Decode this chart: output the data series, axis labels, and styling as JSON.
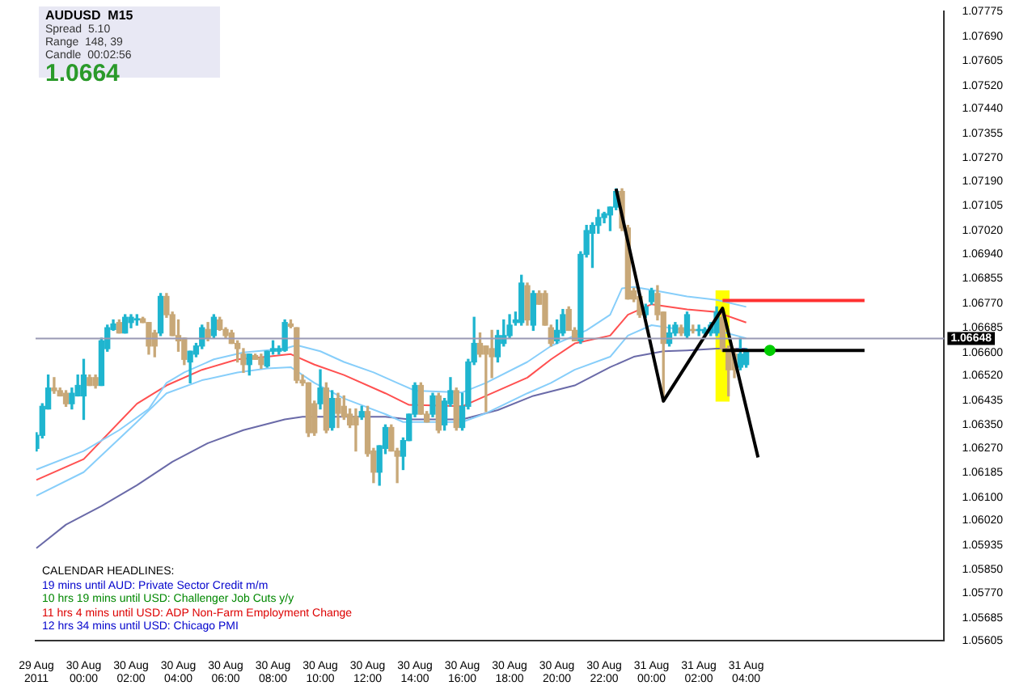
{
  "chart_data": {
    "type": "candlestick",
    "title": "AUDUSD  M15",
    "annotations": [
      "Spread  5.10",
      "Range  148, 39",
      "Candle  00:02:56",
      "1.0664",
      "CALENDAR HEADLINES:",
      "19 mins until AUD: Private Sector Credit m/m",
      "10 hrs 19 mins until USD: Challenger Job Cuts y/y",
      "11 hrs 4 mins until USD: ADP Non-Farm Employment Change",
      "12 hrs 34 mins until USD: Chicago PMI"
    ],
    "x": [
      "2011-08-29T22:00",
      "2011-08-29T22:15",
      "2011-08-29T22:30",
      "2011-08-29T22:45",
      "2011-08-29T23:00",
      "2011-08-29T23:15",
      "2011-08-29T23:30",
      "2011-08-29T23:45",
      "2011-08-30T00:00",
      "2011-08-30T00:15",
      "2011-08-30T00:30",
      "2011-08-30T00:45",
      "2011-08-30T01:00",
      "2011-08-30T01:15",
      "2011-08-30T01:30",
      "2011-08-30T01:45",
      "2011-08-30T02:00",
      "2011-08-30T02:15",
      "2011-08-30T02:30",
      "2011-08-30T02:45",
      "2011-08-30T03:00",
      "2011-08-30T03:15",
      "2011-08-30T03:30",
      "2011-08-30T03:45",
      "2011-08-30T04:00",
      "2011-08-30T04:15",
      "2011-08-30T04:30",
      "2011-08-30T04:45",
      "2011-08-30T05:00",
      "2011-08-30T05:15",
      "2011-08-30T05:30",
      "2011-08-30T05:45",
      "2011-08-30T06:00",
      "2011-08-30T06:15",
      "2011-08-30T06:30",
      "2011-08-30T06:45",
      "2011-08-30T07:00",
      "2011-08-30T07:15",
      "2011-08-30T07:30",
      "2011-08-30T07:45",
      "2011-08-30T08:00",
      "2011-08-30T08:15",
      "2011-08-30T08:30",
      "2011-08-30T08:45",
      "2011-08-30T09:00",
      "2011-08-30T09:15",
      "2011-08-30T09:30",
      "2011-08-30T09:45",
      "2011-08-30T10:00",
      "2011-08-30T10:15",
      "2011-08-30T10:30",
      "2011-08-30T10:45",
      "2011-08-30T11:00",
      "2011-08-30T11:15",
      "2011-08-30T11:30",
      "2011-08-30T11:45",
      "2011-08-30T12:00",
      "2011-08-30T12:15",
      "2011-08-30T12:30",
      "2011-08-30T12:45",
      "2011-08-30T13:00",
      "2011-08-30T13:15",
      "2011-08-30T13:30",
      "2011-08-30T13:45",
      "2011-08-30T14:00",
      "2011-08-30T14:15",
      "2011-08-30T14:30",
      "2011-08-30T14:45",
      "2011-08-30T15:00",
      "2011-08-30T15:15",
      "2011-08-30T15:30",
      "2011-08-30T15:45",
      "2011-08-30T16:00",
      "2011-08-30T16:15",
      "2011-08-30T16:30",
      "2011-08-30T16:45",
      "2011-08-30T17:00",
      "2011-08-30T17:15",
      "2011-08-30T17:30",
      "2011-08-30T17:45",
      "2011-08-30T18:00",
      "2011-08-30T18:15",
      "2011-08-30T18:30",
      "2011-08-30T18:45",
      "2011-08-30T19:00",
      "2011-08-30T19:15",
      "2011-08-30T19:30",
      "2011-08-30T19:45",
      "2011-08-30T20:00",
      "2011-08-30T20:15",
      "2011-08-30T20:30",
      "2011-08-30T20:45",
      "2011-08-30T21:00",
      "2011-08-30T21:15",
      "2011-08-30T21:30",
      "2011-08-30T21:45",
      "2011-08-30T22:00",
      "2011-08-30T22:15",
      "2011-08-30T22:30",
      "2011-08-30T22:45",
      "2011-08-30T23:00",
      "2011-08-30T23:15",
      "2011-08-30T23:30",
      "2011-08-30T23:45",
      "2011-08-31T00:00",
      "2011-08-31T00:15",
      "2011-08-31T00:30",
      "2011-08-31T00:45",
      "2011-08-31T01:00",
      "2011-08-31T01:15",
      "2011-08-31T01:30",
      "2011-08-31T01:45",
      "2011-08-31T02:00",
      "2011-08-31T02:15",
      "2011-08-31T02:30",
      "2011-08-31T02:45",
      "2011-08-31T03:00",
      "2011-08-31T03:15",
      "2011-08-31T03:30",
      "2011-08-31T03:45",
      "2011-08-31T04:00"
    ],
    "ohlc": [
      [
        1.06269,
        1.06323,
        1.0626,
        1.06314
      ],
      [
        1.06314,
        1.06423,
        1.06305,
        1.06414
      ],
      [
        1.06405,
        1.06522,
        1.06405,
        1.06477
      ],
      [
        1.06477,
        1.06513,
        1.06459,
        1.06468
      ],
      [
        1.06468,
        1.06477,
        1.0645,
        1.0645
      ],
      [
        1.06459,
        1.06468,
        1.06414,
        1.06423
      ],
      [
        1.06423,
        1.06477,
        1.06405,
        1.06459
      ],
      [
        1.0645,
        1.06522,
        1.0645,
        1.06486
      ],
      [
        1.0645,
        1.06576,
        1.06369,
        1.06522
      ],
      [
        1.06513,
        1.06522,
        1.06486,
        1.06486
      ],
      [
        1.06513,
        1.06522,
        1.06477,
        1.06486
      ],
      [
        1.06486,
        1.06649,
        1.06486,
        1.0664
      ],
      [
        1.06613,
        1.06694,
        1.06604,
        1.06685
      ],
      [
        1.06679,
        1.06712,
        1.06676,
        1.06698
      ],
      [
        1.06703,
        1.06712,
        1.06667,
        1.06667
      ],
      [
        1.06667,
        1.0673,
        1.06667,
        1.06721
      ],
      [
        1.06703,
        1.0673,
        1.06685,
        1.06721
      ],
      [
        1.06712,
        1.0673,
        1.06694,
        1.06716
      ],
      [
        1.06716,
        1.06721,
        1.06703,
        1.06703
      ],
      [
        1.06703,
        1.06703,
        1.06594,
        1.06622
      ],
      [
        1.06667,
        1.06676,
        1.06585,
        1.06622
      ],
      [
        1.06667,
        1.06803,
        1.06658,
        1.06793
      ],
      [
        1.06793,
        1.06803,
        1.06721,
        1.0673
      ],
      [
        1.0673,
        1.06739,
        1.06658,
        1.06658
      ],
      [
        1.06658,
        1.06712,
        1.06604,
        1.0664
      ],
      [
        1.06649,
        1.06649,
        1.06558,
        1.06576
      ],
      [
        1.06567,
        1.06604,
        1.06495,
        1.06604
      ],
      [
        1.06594,
        1.06631,
        1.06585,
        1.06622
      ],
      [
        1.06622,
        1.06694,
        1.06613,
        1.06685
      ],
      [
        1.06679,
        1.06703,
        1.0664,
        1.06649
      ],
      [
        1.06658,
        1.0673,
        1.06649,
        1.06721
      ],
      [
        1.06712,
        1.06721,
        1.06676,
        1.06679
      ],
      [
        1.06679,
        1.06685,
        1.06649,
        1.06658
      ],
      [
        1.06667,
        1.06676,
        1.06631,
        1.06631
      ],
      [
        1.06631,
        1.0664,
        1.06567,
        1.06613
      ],
      [
        1.06594,
        1.06613,
        1.06531,
        1.06558
      ],
      [
        1.06558,
        1.06594,
        1.06522,
        1.06594
      ],
      [
        1.06589,
        1.06594,
        1.06576,
        1.06576
      ],
      [
        1.06582,
        1.06594,
        1.06545,
        1.06558
      ],
      [
        1.06553,
        1.06604,
        1.06549,
        1.06604
      ],
      [
        1.06604,
        1.0664,
        1.06594,
        1.06613
      ],
      [
        1.06604,
        1.06622,
        1.06594,
        1.06613
      ],
      [
        1.06607,
        1.06712,
        1.06604,
        1.06703
      ],
      [
        1.06698,
        1.06712,
        1.06685,
        1.0669
      ],
      [
        1.06685,
        1.06685,
        1.06495,
        1.06504
      ],
      [
        1.06504,
        1.06522,
        1.06486,
        1.06495
      ],
      [
        1.06495,
        1.06495,
        1.0631,
        1.06323
      ],
      [
        1.06423,
        1.06432,
        1.06314,
        1.06323
      ],
      [
        1.06423,
        1.0654,
        1.06405,
        1.06477
      ],
      [
        1.06477,
        1.06495,
        1.06323,
        1.06332
      ],
      [
        1.06341,
        1.06468,
        1.06332,
        1.06441
      ],
      [
        1.06441,
        1.06459,
        1.06341,
        1.0639
      ],
      [
        1.06414,
        1.0645,
        1.06369,
        1.06378
      ],
      [
        1.06387,
        1.06405,
        1.06341,
        1.0635
      ],
      [
        1.06378,
        1.06405,
        1.0626,
        1.0635
      ],
      [
        1.06378,
        1.06414,
        1.06369,
        1.06396
      ],
      [
        1.06396,
        1.06414,
        1.06242,
        1.06251
      ],
      [
        1.0626,
        1.06269,
        1.06151,
        1.06187
      ],
      [
        1.06187,
        1.06278,
        1.06142,
        1.06278
      ],
      [
        1.06269,
        1.0635,
        1.06251,
        1.06341
      ],
      [
        1.06341,
        1.0635,
        1.0626,
        1.0626
      ],
      [
        1.0626,
        1.06269,
        1.06151,
        1.06242
      ],
      [
        1.06242,
        1.06305,
        1.06196,
        1.06296
      ],
      [
        1.06296,
        1.06387,
        1.06296,
        1.06387
      ],
      [
        1.06387,
        1.06495,
        1.06378,
        1.06486
      ],
      [
        1.06486,
        1.06495,
        1.06387,
        1.06387
      ],
      [
        1.06387,
        1.06396,
        1.0636,
        1.0636
      ],
      [
        1.06387,
        1.06459,
        1.06378,
        1.0645
      ],
      [
        1.0645,
        1.06459,
        1.06323,
        1.06332
      ],
      [
        1.0635,
        1.06441,
        1.06332,
        1.06432
      ],
      [
        1.06423,
        1.06513,
        1.06414,
        1.06468
      ],
      [
        1.06468,
        1.06477,
        1.06332,
        1.06341
      ],
      [
        1.06341,
        1.06459,
        1.06332,
        1.06414
      ],
      [
        1.06414,
        1.06576,
        1.06405,
        1.06567
      ],
      [
        1.06567,
        1.06721,
        1.06558,
        1.06631
      ],
      [
        1.06631,
        1.06667,
        1.06585,
        1.06594
      ],
      [
        1.06622,
        1.06622,
        1.06396,
        1.06594
      ],
      [
        1.06613,
        1.06676,
        1.06513,
        1.06585
      ],
      [
        1.06585,
        1.06676,
        1.06567,
        1.06658
      ],
      [
        1.06631,
        1.06712,
        1.06622,
        1.06658
      ],
      [
        1.06658,
        1.0673,
        1.06649,
        1.06694
      ],
      [
        1.06703,
        1.06739,
        1.06694,
        1.06712
      ],
      [
        1.06703,
        1.06866,
        1.06694,
        1.06839
      ],
      [
        1.0683,
        1.06839,
        1.06694,
        1.06712
      ],
      [
        1.06694,
        1.06812,
        1.06676,
        1.06803
      ],
      [
        1.06803,
        1.06812,
        1.06766,
        1.06766
      ],
      [
        1.06803,
        1.06812,
        1.06694,
        1.06694
      ],
      [
        1.06685,
        1.06694,
        1.06622,
        1.06631
      ],
      [
        1.0664,
        1.06712,
        1.06631,
        1.06676
      ],
      [
        1.06667,
        1.06748,
        1.06658,
        1.0673
      ],
      [
        1.06748,
        1.06757,
        1.06676,
        1.06676
      ],
      [
        1.06676,
        1.06685,
        1.0664,
        1.0664
      ],
      [
        1.0664,
        1.06947,
        1.06631,
        1.06938
      ],
      [
        1.06938,
        1.07038,
        1.06929,
        1.0702
      ],
      [
        1.07011,
        1.07047,
        1.06893,
        1.07038
      ],
      [
        1.07038,
        1.07092,
        1.07011,
        1.07065
      ],
      [
        1.07065,
        1.07083,
        1.07047,
        1.07078
      ],
      [
        1.07074,
        1.07101,
        1.0702,
        1.07101
      ],
      [
        1.07101,
        1.07164,
        1.07092,
        1.07155
      ],
      [
        1.07155,
        1.07164,
        1.0702,
        1.07029
      ],
      [
        1.07029,
        1.07038,
        1.06784,
        1.06784
      ],
      [
        1.06812,
        1.06821,
        1.06775,
        1.06784
      ],
      [
        1.06793,
        1.06793,
        1.06721,
        1.0673
      ],
      [
        1.0673,
        1.06766,
        1.06721,
        1.06757
      ],
      [
        1.06775,
        1.06821,
        1.06766,
        1.06812
      ],
      [
        1.06803,
        1.0683,
        1.06712,
        1.0673
      ],
      [
        1.06739,
        1.06739,
        1.06432,
        1.06631
      ],
      [
        1.06631,
        1.06694,
        1.06622,
        1.06667
      ],
      [
        1.06667,
        1.06703,
        1.06658,
        1.06694
      ],
      [
        1.06685,
        1.06694,
        1.06658,
        1.06667
      ],
      [
        1.06658,
        1.06739,
        1.06649,
        1.0673
      ],
      [
        1.06679,
        1.06694,
        1.06667,
        1.06676
      ],
      [
        1.06676,
        1.06694,
        1.06658,
        1.06679
      ],
      [
        1.06667,
        1.06685,
        1.06658,
        1.06679
      ],
      [
        1.06667,
        1.06703,
        1.06658,
        1.06694
      ],
      [
        1.06667,
        1.06757,
        1.06658,
        1.06739
      ],
      [
        1.06721,
        1.06739,
        1.06604,
        1.06613
      ],
      [
        1.06613,
        1.06622,
        1.0645,
        1.0654
      ],
      [
        1.06594,
        1.06613,
        1.06513,
        1.0654
      ],
      [
        1.06549,
        1.06649,
        1.0654,
        1.06594
      ],
      [
        1.06558,
        1.06613,
        1.06549,
        1.06604
      ]
    ],
    "colors": [
      "#1fb5cf",
      "#1fb5cf",
      "#1fb5cf",
      "#c8a878",
      "#c8a878",
      "#c8a878",
      "#1fb5cf",
      "#1fb5cf",
      "#1fb5cf",
      "#c8a878",
      "#c8a878",
      "#1fb5cf",
      "#1fb5cf",
      "#1fb5cf",
      "#c8a878",
      "#1fb5cf",
      "#1fb5cf",
      "#1fb5cf",
      "#c8a878",
      "#c8a878",
      "#c8a878",
      "#1fb5cf",
      "#c8a878",
      "#c8a878",
      "#c8a878",
      "#c8a878",
      "#1fb5cf",
      "#1fb5cf",
      "#1fb5cf",
      "#c8a878",
      "#1fb5cf",
      "#c8a878",
      "#c8a878",
      "#c8a878",
      "#c8a878",
      "#c8a878",
      "#1fb5cf",
      "#c8a878",
      "#c8a878",
      "#1fb5cf",
      "#1fb5cf",
      "#1fb5cf",
      "#1fb5cf",
      "#c8a878",
      "#c8a878",
      "#c8a878",
      "#c8a878",
      "#c8a878",
      "#1fb5cf",
      "#c8a878",
      "#1fb5cf",
      "#c8a878",
      "#c8a878",
      "#c8a878",
      "#c8a878",
      "#1fb5cf",
      "#c8a878",
      "#c8a878",
      "#1fb5cf",
      "#1fb5cf",
      "#c8a878",
      "#c8a878",
      "#1fb5cf",
      "#1fb5cf",
      "#1fb5cf",
      "#c8a878",
      "#c8a878",
      "#1fb5cf",
      "#c8a878",
      "#1fb5cf",
      "#1fb5cf",
      "#c8a878",
      "#1fb5cf",
      "#1fb5cf",
      "#1fb5cf",
      "#c8a878",
      "#c8a878",
      "#c8a878",
      "#1fb5cf",
      "#1fb5cf",
      "#1fb5cf",
      "#1fb5cf",
      "#1fb5cf",
      "#c8a878",
      "#1fb5cf",
      "#c8a878",
      "#c8a878",
      "#c8a878",
      "#1fb5cf",
      "#1fb5cf",
      "#c8a878",
      "#c8a878",
      "#1fb5cf",
      "#1fb5cf",
      "#1fb5cf",
      "#1fb5cf",
      "#1fb5cf",
      "#1fb5cf",
      "#1fb5cf",
      "#c8a878",
      "#c8a878",
      "#c8a878",
      "#c8a878",
      "#1fb5cf",
      "#1fb5cf",
      "#c8a878",
      "#c8a878",
      "#1fb5cf",
      "#1fb5cf",
      "#c8a878",
      "#1fb5cf",
      "#c8a878",
      "#1fb5cf",
      "#1fb5cf",
      "#1fb5cf",
      "#1fb5cf",
      "#c8a878",
      "#c8a878",
      "#c8a878",
      "#1fb5cf",
      "#1fb5cf"
    ],
    "series": [
      {
        "type": "line",
        "color": "#87cefa",
        "x": [
          "2011-08-29T22:00",
          "2011-08-30T00:00",
          "2011-08-30T01:30",
          "2011-08-30T02:45",
          "2011-08-30T03:30",
          "2011-08-30T04:15",
          "2011-08-30T05:30",
          "2011-08-30T06:45",
          "2011-08-30T08:30",
          "2011-08-30T09:00",
          "2011-08-30T10:00",
          "2011-08-30T11:00",
          "2011-08-30T12:15",
          "2011-08-30T13:15",
          "2011-08-30T14:00",
          "2011-08-30T16:00",
          "2011-08-30T17:00",
          "2011-08-30T18:45",
          "2011-08-30T19:45",
          "2011-08-30T21:15",
          "2011-08-30T22:15",
          "2011-08-30T22:45",
          "2011-08-30T23:15",
          "2011-08-31T00:15",
          "2011-08-31T01:30",
          "2011-08-31T02:45",
          "2011-08-31T04:00"
        ],
        "values": [
          1.06196,
          1.0626,
          1.06332,
          1.06405,
          1.06495,
          1.06531,
          1.06576,
          1.066,
          1.06613,
          1.06625,
          1.06604,
          1.06567,
          1.06531,
          1.06495,
          1.06468,
          1.06462,
          1.06495,
          1.06567,
          1.06622,
          1.06676,
          1.0673,
          1.06821,
          1.06826,
          1.06812,
          1.06793,
          1.06781,
          1.06757
        ]
      },
      {
        "type": "line",
        "color": "#ff5050",
        "x": [
          "2011-08-29T22:00",
          "2011-08-30T00:00",
          "2011-08-30T02:15",
          "2011-08-30T03:30",
          "2011-08-30T05:00",
          "2011-08-30T06:30",
          "2011-08-30T07:45",
          "2011-08-30T08:45",
          "2011-08-30T09:45",
          "2011-08-30T11:00",
          "2011-08-30T12:45",
          "2011-08-30T13:45",
          "2011-08-30T16:00",
          "2011-08-30T17:00",
          "2011-08-30T18:45",
          "2011-08-30T19:45",
          "2011-08-30T20:45",
          "2011-08-30T22:15",
          "2011-08-30T23:00",
          "2011-08-31T00:00",
          "2011-08-31T01:30",
          "2011-08-31T02:45",
          "2011-08-31T04:00"
        ],
        "values": [
          1.0616,
          1.06232,
          1.06423,
          1.06486,
          1.0654,
          1.06576,
          1.06585,
          1.06594,
          1.06558,
          1.06522,
          1.06459,
          1.06419,
          1.06414,
          1.0645,
          1.06513,
          1.06576,
          1.06631,
          1.06658,
          1.0673,
          1.06766,
          1.06748,
          1.06739,
          1.06703
        ]
      },
      {
        "type": "line",
        "color": "#87cefa",
        "x": [
          "2011-08-29T22:00",
          "2011-08-30T00:00",
          "2011-08-30T02:15",
          "2011-08-30T03:30",
          "2011-08-30T05:00",
          "2011-08-30T06:30",
          "2011-08-30T07:45",
          "2011-08-30T08:45",
          "2011-08-30T09:45",
          "2011-08-30T11:00",
          "2011-08-30T12:45",
          "2011-08-30T13:30",
          "2011-08-30T16:00",
          "2011-08-30T17:00",
          "2011-08-30T18:45",
          "2011-08-30T19:45",
          "2011-08-30T20:45",
          "2011-08-30T22:15",
          "2011-08-30T23:00",
          "2011-08-31T00:00",
          "2011-08-31T01:30",
          "2011-08-31T02:45",
          "2011-08-31T04:00"
        ],
        "values": [
          1.06106,
          1.06187,
          1.0636,
          1.06459,
          1.06504,
          1.06531,
          1.06545,
          1.06549,
          1.06495,
          1.06441,
          1.06387,
          1.0636,
          1.0636,
          1.0639,
          1.06459,
          1.06495,
          1.0654,
          1.06585,
          1.06658,
          1.06694,
          1.06676,
          1.06676,
          1.06649
        ]
      },
      {
        "type": "line",
        "color": "#6a6aa8",
        "x": [
          "2011-08-29T22:00",
          "2011-08-29T23:15",
          "2011-08-30T00:45",
          "2011-08-30T02:15",
          "2011-08-30T03:45",
          "2011-08-30T05:15",
          "2011-08-30T06:45",
          "2011-08-30T08:30",
          "2011-08-30T09:15",
          "2011-08-30T10:30",
          "2011-08-30T12:45",
          "2011-08-30T13:45",
          "2011-08-30T16:00",
          "2011-08-30T17:30",
          "2011-08-30T19:00",
          "2011-08-30T20:45",
          "2011-08-30T22:15",
          "2011-08-30T23:15",
          "2011-08-31T00:30",
          "2011-08-31T01:30",
          "2011-08-31T02:45",
          "2011-08-31T04:00"
        ],
        "values": [
          1.05925,
          1.06006,
          1.0607,
          1.06142,
          1.06223,
          1.06287,
          1.06332,
          1.06369,
          1.06378,
          1.06378,
          1.06378,
          1.06369,
          1.06369,
          1.06401,
          1.0645,
          1.06486,
          1.06549,
          1.06585,
          1.06604,
          1.06607,
          1.06613,
          1.06613
        ]
      },
      {
        "type": "bar",
        "color": "#ffff00",
        "x": [
          "2011-08-31T03:00"
        ],
        "base": [
          1.06432
        ],
        "values": [
          0.0038
        ]
      },
      {
        "type": "line",
        "color": "#000000",
        "x": [
          "2011-08-30T22:30",
          "2011-08-31T00:30",
          "2011-08-31T03:00",
          "2011-08-31T04:30"
        ],
        "values": [
          1.07164,
          1.06432,
          1.06752,
          1.06238
        ]
      },
      {
        "type": "line",
        "color": "#ff3030",
        "x": [
          "2011-08-31T03:00",
          "2011-08-31T09:00"
        ],
        "values": [
          1.06779,
          1.06779
        ]
      },
      {
        "type": "line",
        "color": "#000000",
        "x": [
          "2011-08-31T03:00",
          "2011-08-31T09:00"
        ],
        "values": [
          1.06607,
          1.06607
        ]
      },
      {
        "type": "scatter",
        "color": "#00cc00",
        "marker": "circle",
        "x": [
          "2011-08-31T05:00"
        ],
        "values": [
          1.06607
        ]
      }
    ],
    "ref_lines": [
      {
        "axis": "y",
        "value": 1.06648,
        "label": "1.06648",
        "color": "#9a9ab4"
      }
    ],
    "xlim": [
      "2011-08-29T21:58",
      "2011-08-31T12:22"
    ],
    "xticks": [
      {
        "value": "2011-08-29T22:00",
        "label": "29 Aug 2011"
      },
      {
        "value": "2011-08-30T00:00",
        "label": "30 Aug 00:00"
      },
      {
        "value": "2011-08-30T02:00",
        "label": "30 Aug 02:00"
      },
      {
        "value": "2011-08-30T04:00",
        "label": "30 Aug 04:00"
      },
      {
        "value": "2011-08-30T06:00",
        "label": "30 Aug 06:00"
      },
      {
        "value": "2011-08-30T08:00",
        "label": "30 Aug 08:00"
      },
      {
        "value": "2011-08-30T10:00",
        "label": "30 Aug 10:00"
      },
      {
        "value": "2011-08-30T12:00",
        "label": "30 Aug 12:00"
      },
      {
        "value": "2011-08-30T14:00",
        "label": "30 Aug 14:00"
      },
      {
        "value": "2011-08-30T16:00",
        "label": "30 Aug 16:00"
      },
      {
        "value": "2011-08-30T18:00",
        "label": "30 Aug 18:00"
      },
      {
        "value": "2011-08-30T20:00",
        "label": "30 Aug 20:00"
      },
      {
        "value": "2011-08-30T22:00",
        "label": "30 Aug 22:00"
      },
      {
        "value": "2011-08-31T00:00",
        "label": "31 Aug 00:00"
      },
      {
        "value": "2011-08-31T02:00",
        "label": "31 Aug 02:00"
      },
      {
        "value": "2011-08-31T04:00",
        "label": "31 Aug 04:00"
      }
    ],
    "ylim": [
      1.05605,
      1.07775
    ],
    "yticks": [
      1.07775,
      {
        "value": 1.0769,
        "label": "1.07690"
      },
      1.07605,
      {
        "value": 1.0752,
        "label": "1.07520"
      },
      {
        "value": 1.0744,
        "label": "1.07440"
      },
      1.07355,
      {
        "value": 1.0727,
        "label": "1.07270"
      },
      {
        "value": 1.0719,
        "label": "1.07190"
      },
      1.07105,
      {
        "value": 1.0702,
        "label": "1.07020"
      },
      {
        "value": 1.0694,
        "label": "1.06940"
      },
      1.06855,
      {
        "value": 1.0677,
        "label": "1.06770"
      },
      1.06685,
      {
        "value": 1.066,
        "label": "1.06600"
      },
      {
        "value": 1.0652,
        "label": "1.06520"
      },
      1.06435,
      {
        "value": 1.0635,
        "label": "1.06350"
      },
      {
        "value": 1.0627,
        "label": "1.06270"
      },
      1.06185,
      {
        "value": 1.061,
        "label": "1.06100"
      },
      {
        "value": 1.0602,
        "label": "1.06020"
      },
      1.05935,
      {
        "value": 1.0585,
        "label": "1.05850"
      },
      {
        "value": 1.0577,
        "label": "1.05770"
      },
      1.05685,
      1.05605
    ]
  }
}
